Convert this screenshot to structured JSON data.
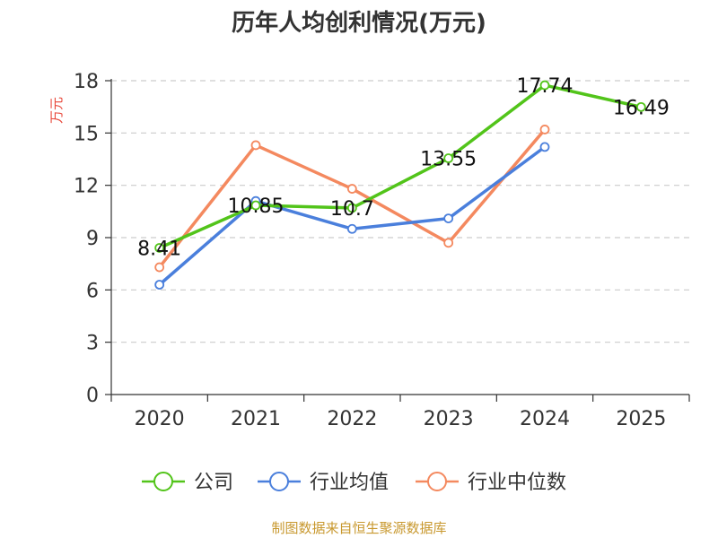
{
  "chart_data": {
    "type": "line",
    "title": "历年人均创利情况(万元)",
    "ylabel": "万元",
    "xlabel": "",
    "categories": [
      "2020",
      "2021",
      "2022",
      "2023",
      "2024",
      "2025"
    ],
    "ylim": [
      0,
      18
    ],
    "yticks": [
      0,
      3,
      6,
      9,
      12,
      15,
      18
    ],
    "grid": true,
    "legend_position": "bottom",
    "series": [
      {
        "name": "公司",
        "color": "#52c41a",
        "values": [
          8.41,
          10.85,
          10.7,
          13.55,
          17.74,
          16.49
        ],
        "labels": [
          "8.41",
          "10.85",
          "10.7",
          "13.55",
          "17.74",
          "16.49"
        ]
      },
      {
        "name": "行业均值",
        "color": "#4a7fdc",
        "values": [
          6.3,
          11.1,
          9.5,
          10.1,
          14.2,
          null
        ]
      },
      {
        "name": "行业中位数",
        "color": "#f4895f",
        "values": [
          7.3,
          14.3,
          11.8,
          8.7,
          15.2,
          null
        ]
      }
    ]
  },
  "source_text": "制图数据来自恒生聚源数据库",
  "colors": {
    "ylabel": "#e8483b",
    "source": "#c8982e",
    "axis": "#333333",
    "grid": "#cccccc"
  }
}
